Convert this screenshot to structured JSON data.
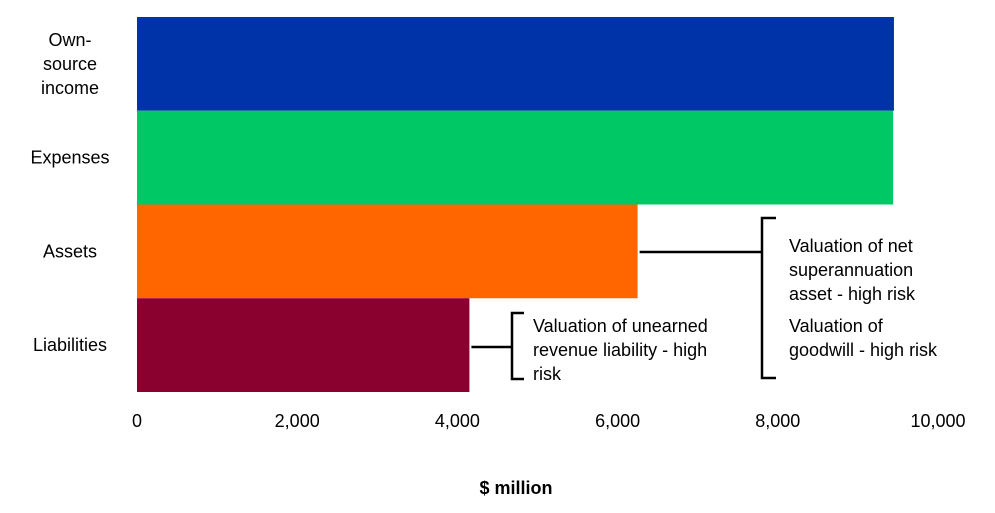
{
  "chart_data": {
    "type": "bar",
    "orientation": "horizontal",
    "categories": [
      [
        "Own-",
        "source",
        "income"
      ],
      [
        "Expenses"
      ],
      [
        "Assets"
      ],
      [
        "Liabilities"
      ]
    ],
    "values": [
      9450,
      9440,
      6250,
      4150
    ],
    "colors": [
      "#0033A8",
      "#00C864",
      "#FF6600",
      "#8A002E"
    ],
    "xlim": [
      0,
      10000
    ],
    "xticks": [
      0,
      2000,
      4000,
      6000,
      8000,
      10000
    ],
    "xtick_labels": [
      "0",
      "2,000",
      "4,000",
      "6,000",
      "8,000",
      "10,000"
    ],
    "xlabel": "$ million",
    "grid": false,
    "legend": "none",
    "annotations": [
      {
        "target_category": "Assets",
        "lines": [
          "Valuation of net",
          "superannuation",
          "asset - high risk",
          "Valuation of",
          "goodwill - high risk"
        ]
      },
      {
        "target_category": "Liabilities",
        "lines": [
          "Valuation of unearned",
          "revenue liability - high",
          "risk"
        ]
      }
    ]
  }
}
